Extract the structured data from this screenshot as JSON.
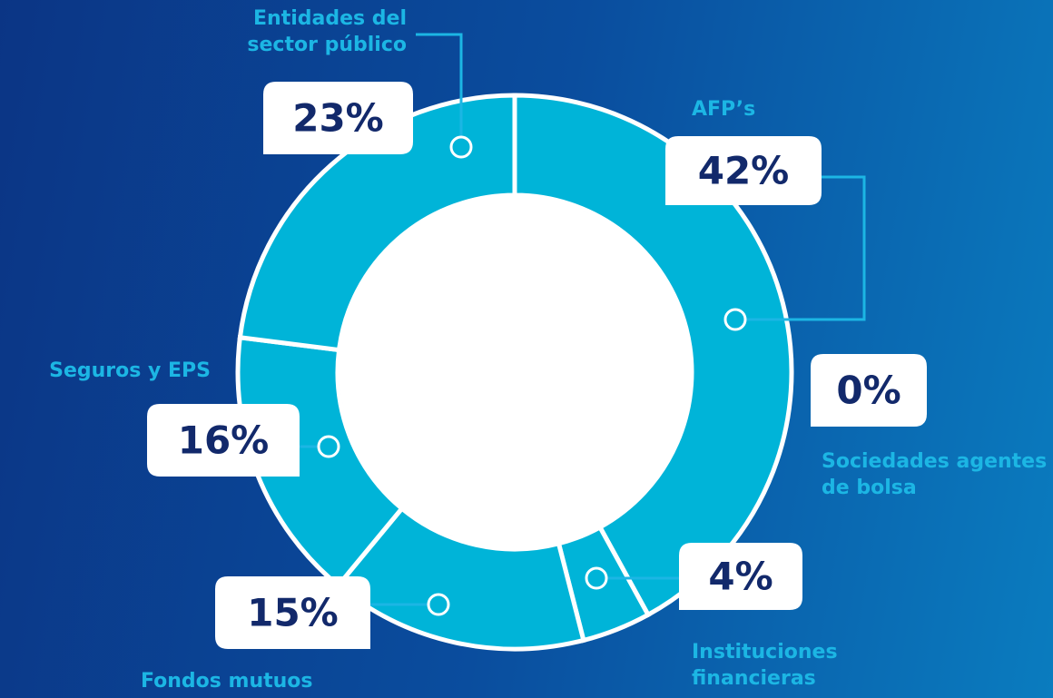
{
  "chart_data": {
    "type": "donut",
    "categories": [
      "AFP’s",
      "Sociedades agentes de bolsa",
      "Instituciones financieras",
      "Fondos mutuos",
      "Seguros y EPS",
      "Entidades del sector público"
    ],
    "values": [
      42,
      0,
      4,
      15,
      16,
      23
    ],
    "value_labels": [
      "42%",
      "0%",
      "4%",
      "15%",
      "16%",
      "23%"
    ],
    "color": "#00b4d8"
  }
}
